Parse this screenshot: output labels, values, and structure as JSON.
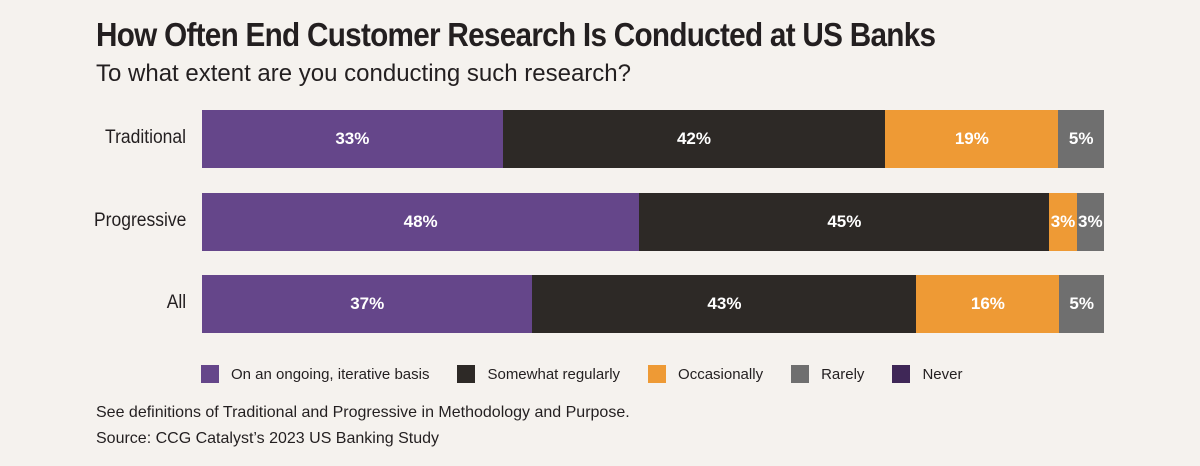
{
  "chart_data": {
    "type": "bar",
    "orientation": "horizontal",
    "stacked": true,
    "title": "How Often End Customer Research Is Conducted at US Banks",
    "subtitle": "To what extent are you conducting such research?",
    "categories": [
      "Traditional",
      "Progressive",
      "All"
    ],
    "series": [
      {
        "name": "On an ongoing, iterative basis",
        "color": "#65468a",
        "values": [
          33,
          48,
          37
        ],
        "labels": [
          "33%",
          "48%",
          "37%"
        ]
      },
      {
        "name": "Somewhat regularly",
        "color": "#2d2926",
        "values": [
          42,
          45,
          43
        ],
        "labels": [
          "42%",
          "45%",
          "43%"
        ]
      },
      {
        "name": "Occasionally",
        "color": "#ee9a35",
        "values": [
          19,
          3,
          16
        ],
        "labels": [
          "19%",
          "3%",
          "16%"
        ]
      },
      {
        "name": "Rarely",
        "color": "#6f6f6f",
        "values": [
          5,
          3,
          5
        ],
        "labels": [
          "5%",
          "3%",
          "5%"
        ]
      },
      {
        "name": "Never",
        "color": "#3f2757",
        "values": [
          0,
          0,
          0
        ],
        "labels": [
          "",
          "",
          ""
        ]
      }
    ],
    "legend_position": "bottom",
    "grid": false
  },
  "notes": [
    "See definitions of Traditional and Progressive in Methodology and Purpose.",
    "Source: CCG Catalyst’s 2023 US Banking Study"
  ]
}
